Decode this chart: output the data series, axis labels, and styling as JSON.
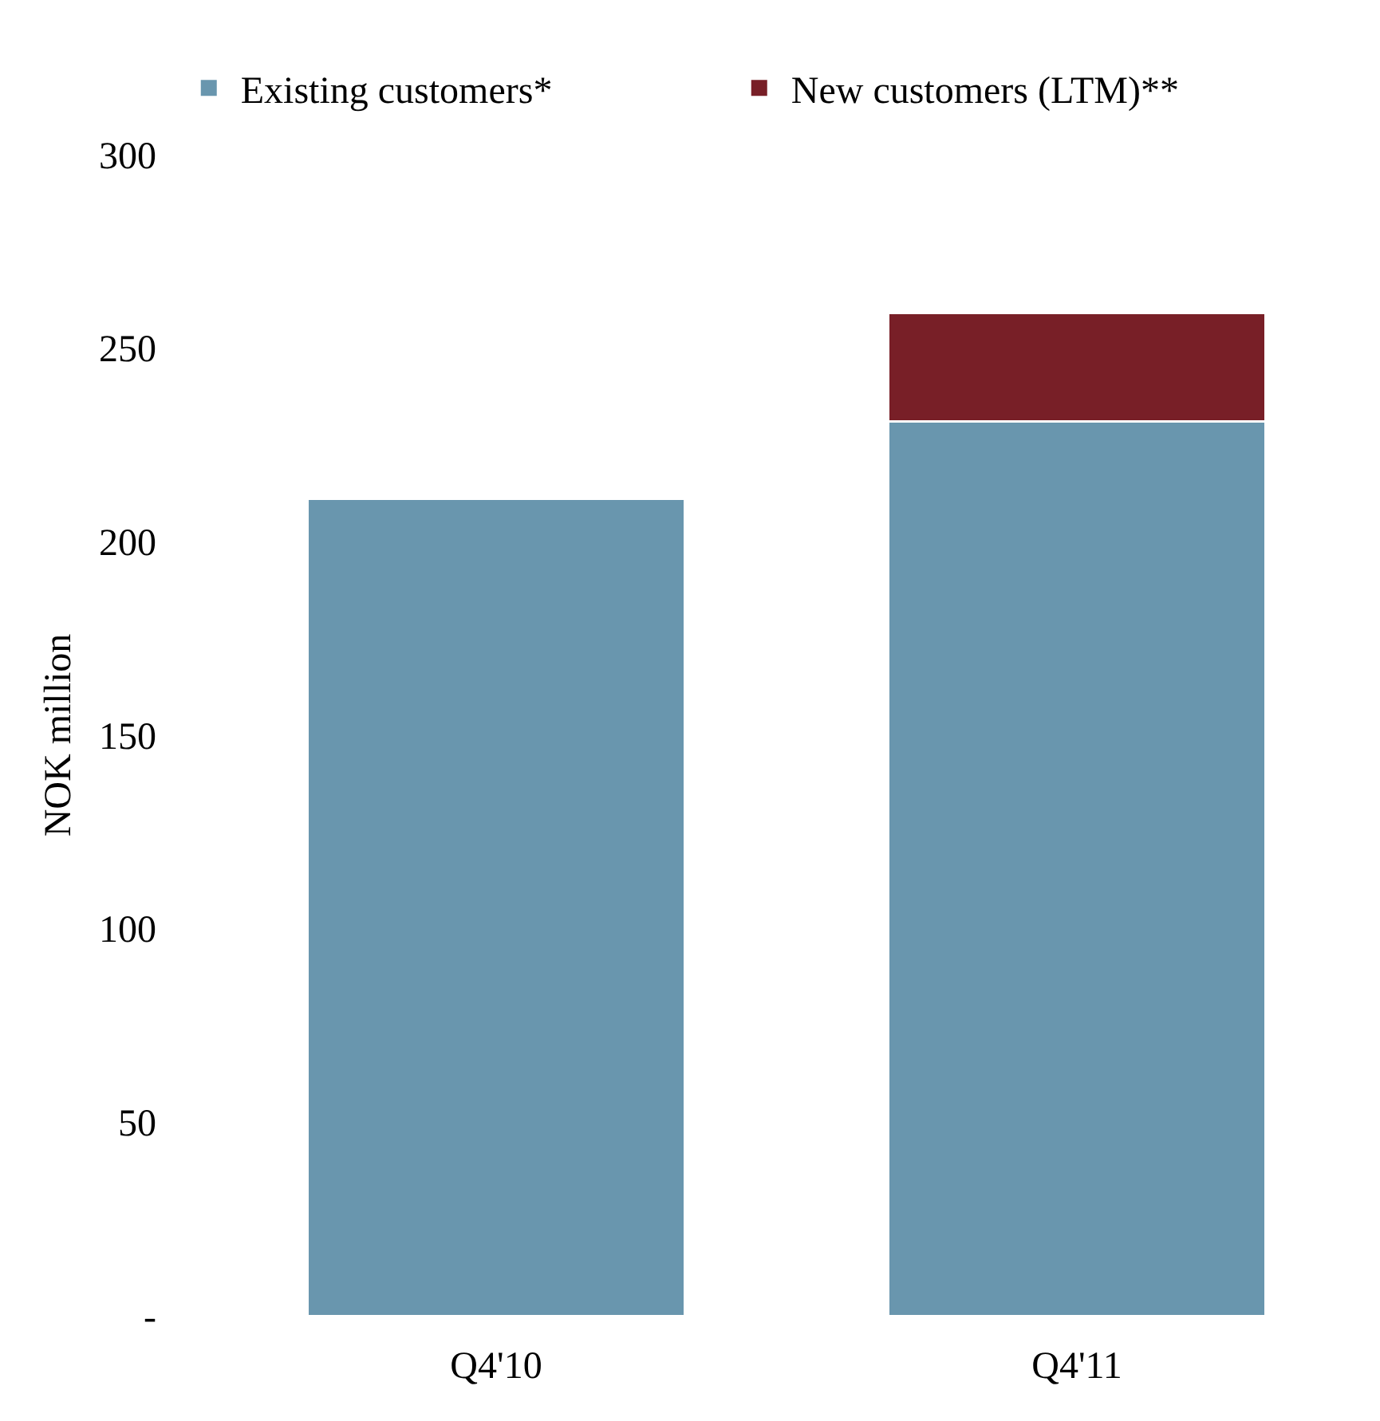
{
  "chart_data": {
    "type": "bar",
    "stacked": true,
    "categories": [
      "Q4'10",
      "Q4'11"
    ],
    "series": [
      {
        "name": "Existing customers*",
        "color": "#6996ae",
        "values": [
          211,
          231
        ]
      },
      {
        "name": "New customers (LTM)**",
        "color": "#781f27",
        "values": [
          null,
          28
        ]
      }
    ],
    "ylabel": "NOK million",
    "ylim": [
      0,
      300
    ],
    "yticks": [
      {
        "value": 0,
        "label": "-"
      },
      50,
      100,
      150,
      200,
      250,
      300
    ],
    "grid": false,
    "legend": "top"
  }
}
